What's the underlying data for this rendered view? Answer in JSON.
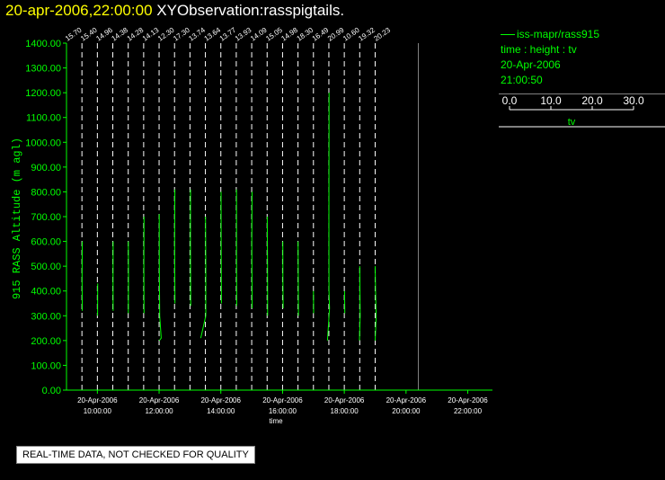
{
  "header": {
    "date_time": "20-apr-2006,22:00:00",
    "observation": "XYObservation:rasspigtails."
  },
  "legend": {
    "series_name": "iss-mapr/rass915",
    "variable_line": "time : height : tv",
    "date": "20-Apr-2006",
    "time": "21:00:50",
    "scale_ticks": [
      "0.0",
      "10.0",
      "20.0",
      "30.0"
    ],
    "scale_label": "tv"
  },
  "footer": {
    "qc_note": "REAL-TIME DATA, NOT CHECKED FOR QUALITY"
  },
  "colors": {
    "data": "#00ff00",
    "axis": "#00ff00",
    "title_date": "#ffff00",
    "title_text": "#ffffff",
    "guides": "#ffffff"
  },
  "chart_data": {
    "type": "line",
    "ylabel": "915 RASS Altitude (m agl)",
    "xlabel": "time",
    "ylim": [
      0,
      1400
    ],
    "y_ticks": [
      "0.00",
      "100.00",
      "200.00",
      "300.00",
      "400.00",
      "500.00",
      "600.00",
      "700.00",
      "800.00",
      "900.00",
      "1000.00",
      "1100.00",
      "1200.00",
      "1300.00",
      "1400.00"
    ],
    "x_ticks": [
      {
        "date": "20-Apr-2006",
        "time": "10:00:00",
        "hour": 10
      },
      {
        "date": "20-Apr-2006",
        "time": "12:00:00",
        "hour": 12
      },
      {
        "date": "20-Apr-2006",
        "time": "14:00:00",
        "hour": 14
      },
      {
        "date": "20-Apr-2006",
        "time": "16:00:00",
        "hour": 16
      },
      {
        "date": "20-Apr-2006",
        "time": "18:00:00",
        "hour": 18
      },
      {
        "date": "20-Apr-2006",
        "time": "20:00:00",
        "hour": 20
      },
      {
        "date": "20-Apr-2006",
        "time": "22:00:00",
        "hour": 22
      }
    ],
    "xlim_hours": [
      9.0,
      22.8
    ],
    "profiles": [
      {
        "label": "15.70",
        "hour": 9.0,
        "points": [
          [
            0.0,
            440
          ],
          [
            0.0,
            300
          ]
        ]
      },
      {
        "label": "15.40",
        "hour": 9.5,
        "points": [
          [
            0.15,
            600
          ],
          [
            0.05,
            450
          ],
          [
            0.15,
            320
          ]
        ]
      },
      {
        "label": "14.96",
        "hour": 10.0,
        "points": [
          [
            0.15,
            430
          ],
          [
            0.1,
            300
          ]
        ]
      },
      {
        "label": "14.38",
        "hour": 10.5,
        "points": [
          [
            0.15,
            600
          ],
          [
            0.1,
            450
          ],
          [
            0.15,
            320
          ]
        ]
      },
      {
        "label": "14.28",
        "hour": 11.0,
        "points": [
          [
            0.05,
            600
          ],
          [
            0.1,
            450
          ],
          [
            0.05,
            310
          ]
        ]
      },
      {
        "label": "14.13",
        "hour": 11.5,
        "points": [
          [
            0.15,
            700
          ],
          [
            0.1,
            500
          ],
          [
            0.15,
            310
          ]
        ]
      },
      {
        "label": "12.30",
        "hour": 12.0,
        "points": [
          [
            0.05,
            710
          ],
          [
            0.1,
            500
          ],
          [
            0.25,
            300
          ],
          [
            0.9,
            210
          ],
          [
            0.1,
            200
          ]
        ]
      },
      {
        "label": "17.30",
        "hour": 12.5,
        "points": [
          [
            0.15,
            810
          ],
          [
            0.05,
            600
          ],
          [
            0.2,
            350
          ]
        ]
      },
      {
        "label": "13.74",
        "hour": 13.0,
        "points": [
          [
            0.25,
            810
          ],
          [
            0.2,
            600
          ],
          [
            0.3,
            340
          ]
        ]
      },
      {
        "label": "13.64",
        "hour": 13.5,
        "points": [
          [
            0.05,
            700
          ],
          [
            0.15,
            500
          ],
          [
            0.15,
            300
          ],
          [
            -2.0,
            210
          ]
        ]
      },
      {
        "label": "13.77",
        "hour": 14.0,
        "points": [
          [
            0.1,
            800
          ],
          [
            0.15,
            600
          ],
          [
            0.25,
            350
          ]
        ]
      },
      {
        "label": "13.93",
        "hour": 14.5,
        "points": [
          [
            0.1,
            810
          ],
          [
            0.1,
            550
          ],
          [
            0.2,
            340
          ]
        ]
      },
      {
        "label": "14.09",
        "hour": 15.0,
        "points": [
          [
            0.15,
            800
          ],
          [
            0.05,
            600
          ],
          [
            0.2,
            330
          ]
        ]
      },
      {
        "label": "15.05",
        "hour": 15.5,
        "points": [
          [
            0.05,
            700
          ],
          [
            0.15,
            500
          ],
          [
            0.2,
            300
          ]
        ]
      },
      {
        "label": "14.98",
        "hour": 16.0,
        "points": [
          [
            0.1,
            600
          ],
          [
            0.15,
            450
          ],
          [
            0.25,
            330
          ]
        ]
      },
      {
        "label": "18.30",
        "hour": 16.5,
        "points": [
          [
            0.05,
            600
          ],
          [
            0.1,
            450
          ],
          [
            0.2,
            300
          ]
        ]
      },
      {
        "label": "16.49",
        "hour": 17.0,
        "points": [
          [
            0.0,
            400
          ],
          [
            0.1,
            310
          ]
        ]
      },
      {
        "label": "20.99",
        "hour": 17.5,
        "points": [
          [
            0.1,
            1200
          ],
          [
            0.0,
            700
          ],
          [
            0.05,
            400
          ],
          [
            0.3,
            330
          ],
          [
            -0.6,
            200
          ]
        ]
      },
      {
        "label": "10.60",
        "hour": 18.0,
        "points": [
          [
            0.1,
            400
          ],
          [
            0.2,
            310
          ]
        ]
      },
      {
        "label": "19.32",
        "hour": 18.5,
        "points": [
          [
            0.0,
            500
          ],
          [
            0.2,
            300
          ],
          [
            -0.1,
            200
          ]
        ]
      },
      {
        "label": "20.23",
        "hour": 19.0,
        "points": [
          [
            0.0,
            500
          ],
          [
            0.15,
            400
          ],
          [
            0.45,
            300
          ],
          [
            0.0,
            200
          ]
        ]
      }
    ]
  }
}
